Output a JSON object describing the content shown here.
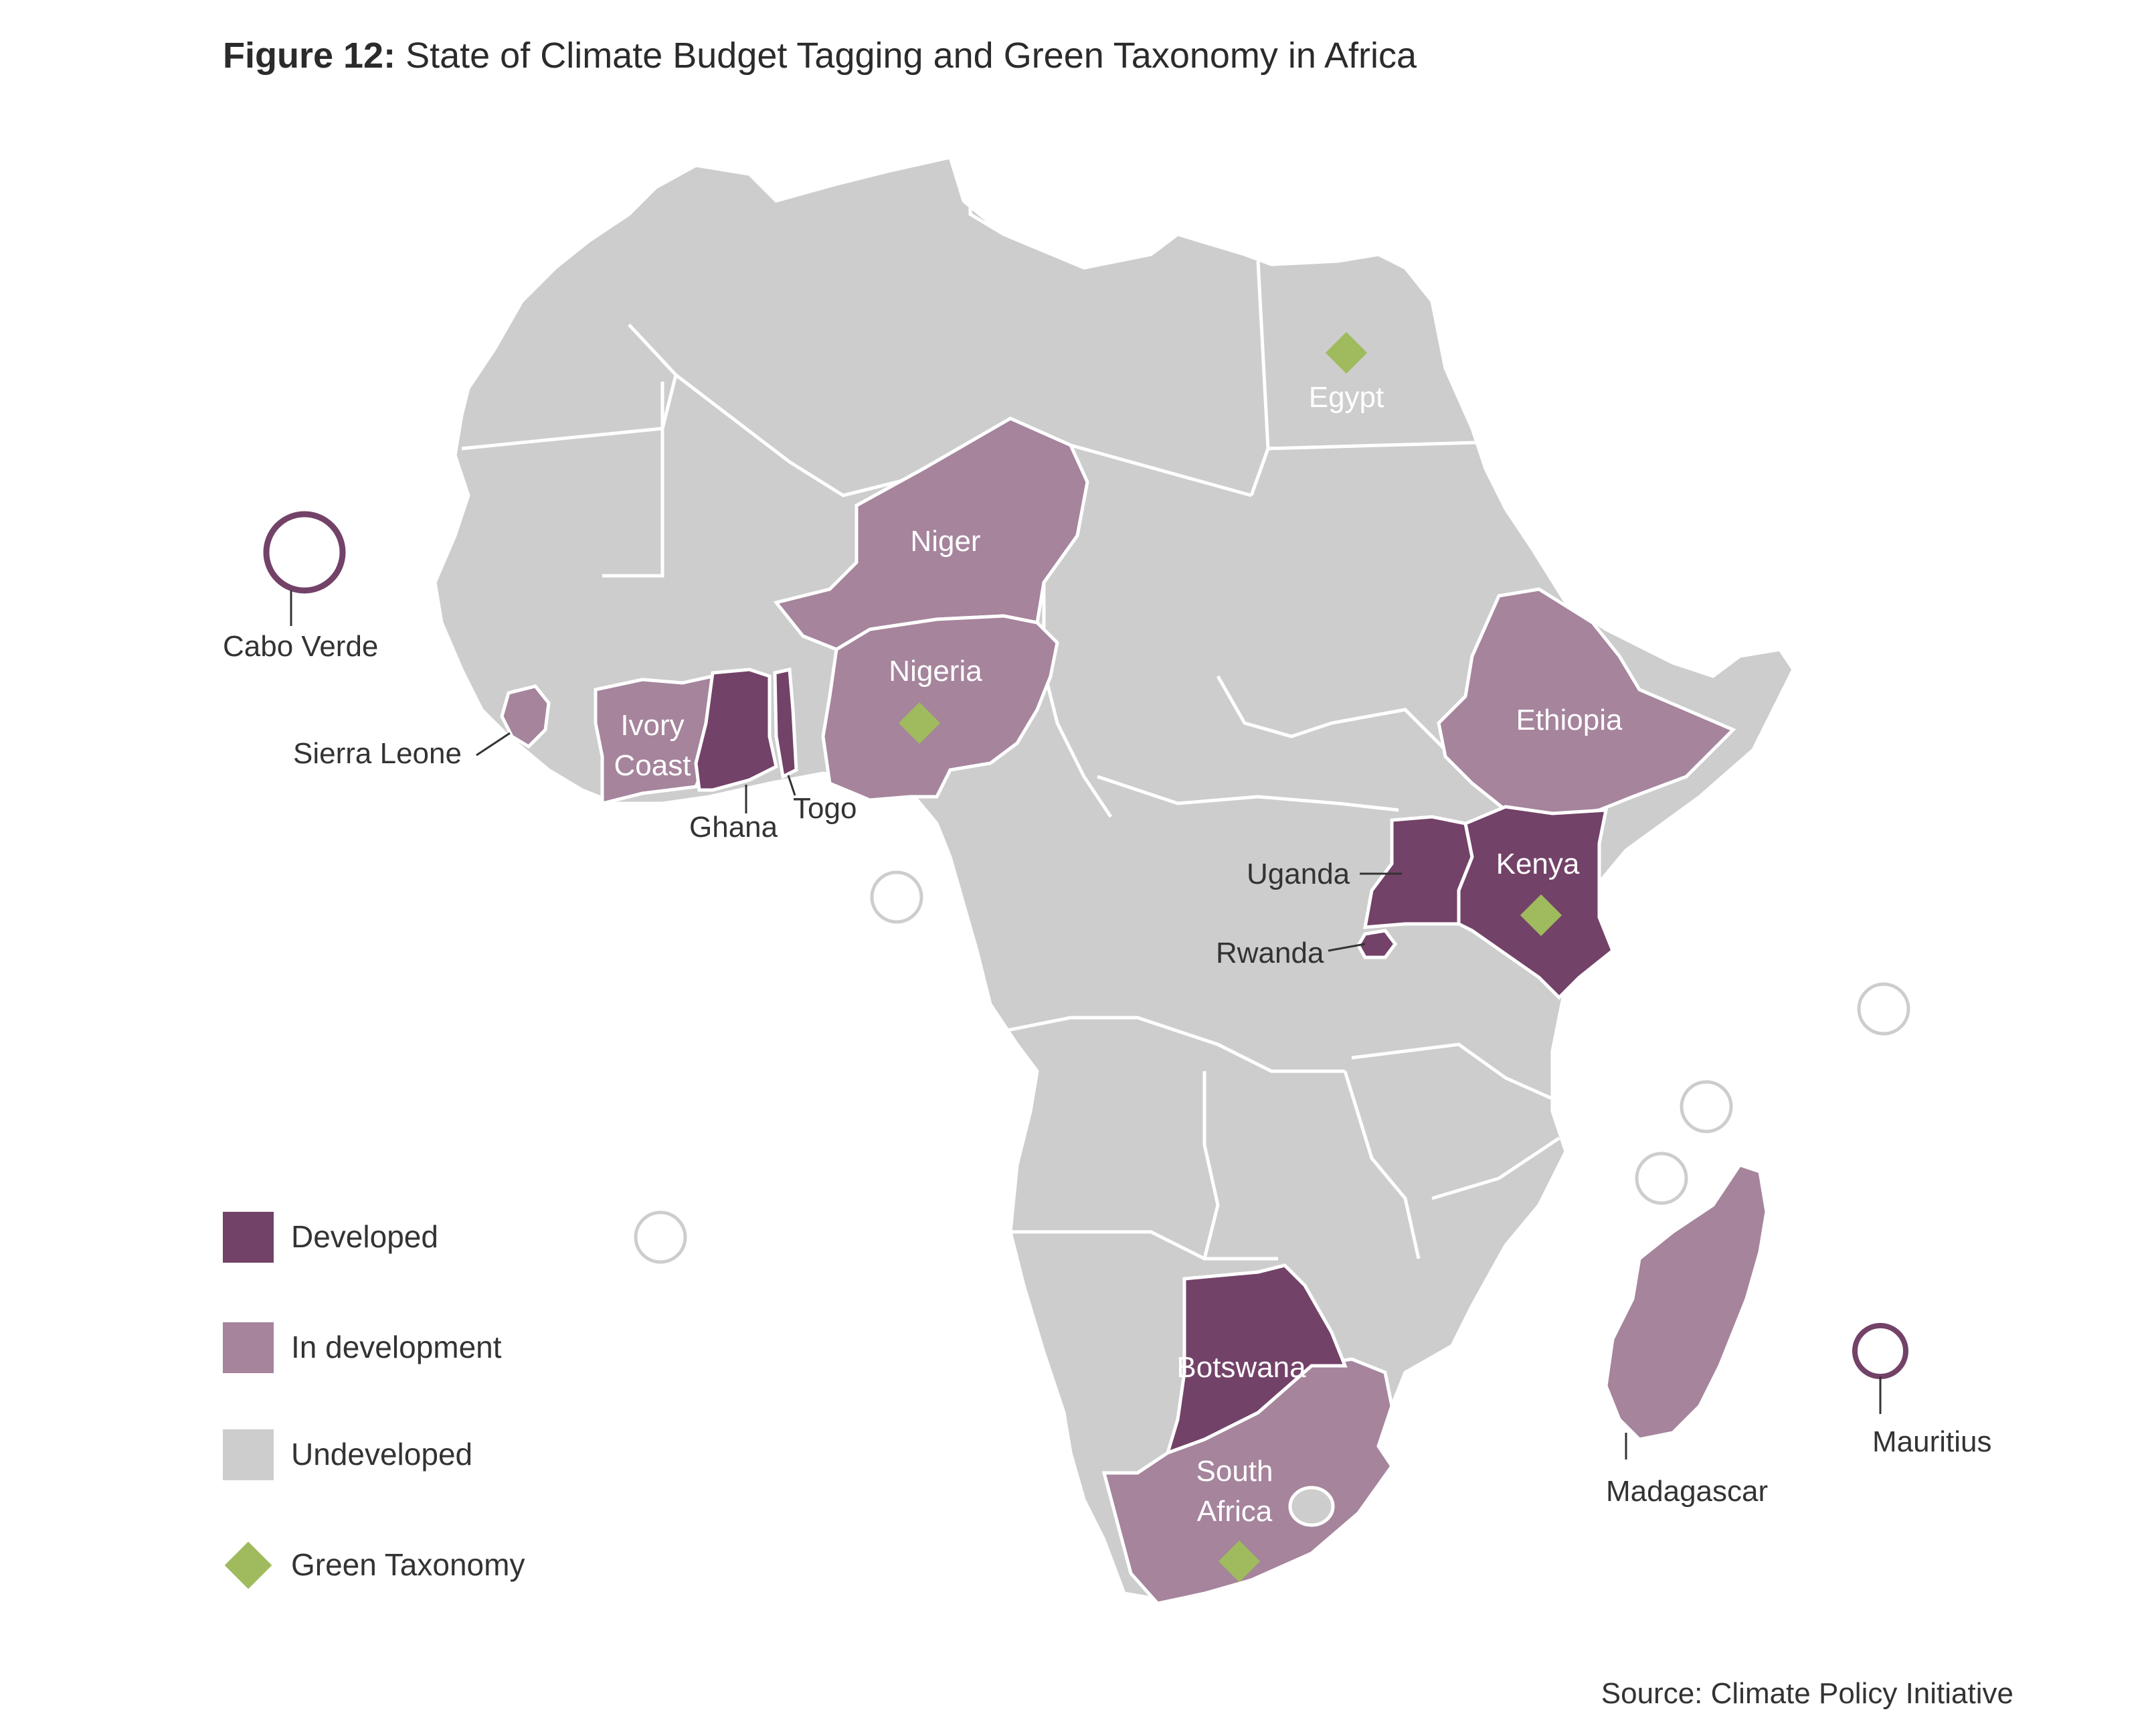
{
  "title": {
    "prefix": "Figure 12:",
    "text": "State of Climate Budget Tagging and Green Taxonomy in Africa"
  },
  "colors": {
    "developed": "#734268",
    "in_development": "#a5849c",
    "undeveloped": "#cdcdcd",
    "green_taxonomy": "#9fbb5d",
    "border": "#ffffff",
    "leader": "#333333"
  },
  "legend": [
    {
      "label": "Developed",
      "color": "#734268",
      "shape": "square"
    },
    {
      "label": "In development",
      "color": "#a5849c",
      "shape": "square"
    },
    {
      "label": "Undeveloped",
      "color": "#cdcdcd",
      "shape": "square"
    },
    {
      "label": "Green Taxonomy",
      "color": "#9fbb5d",
      "shape": "diamond"
    }
  ],
  "countries": [
    {
      "name": "Niger",
      "status": "In development",
      "green_taxonomy": false
    },
    {
      "name": "Nigeria",
      "status": "In development",
      "green_taxonomy": true
    },
    {
      "name": "Ethiopia",
      "status": "In development",
      "green_taxonomy": false
    },
    {
      "name": "Ivory Coast",
      "status": "In development",
      "green_taxonomy": false
    },
    {
      "name": "Sierra Leone",
      "status": "In development",
      "green_taxonomy": false
    },
    {
      "name": "Ghana",
      "status": "Developed",
      "green_taxonomy": false
    },
    {
      "name": "Togo",
      "status": "Developed",
      "green_taxonomy": false
    },
    {
      "name": "Uganda",
      "status": "Developed",
      "green_taxonomy": false
    },
    {
      "name": "Kenya",
      "status": "Developed",
      "green_taxonomy": true
    },
    {
      "name": "Rwanda",
      "status": "Developed",
      "green_taxonomy": false
    },
    {
      "name": "Botswana",
      "status": "Developed",
      "green_taxonomy": false
    },
    {
      "name": "South Africa",
      "status": "In development",
      "green_taxonomy": true
    },
    {
      "name": "Madagascar",
      "status": "In development",
      "green_taxonomy": false
    },
    {
      "name": "Egypt",
      "status": "Undeveloped",
      "green_taxonomy": true
    },
    {
      "name": "Cabo Verde",
      "status": "Developed",
      "green_taxonomy": false
    },
    {
      "name": "Mauritius",
      "status": "Developed",
      "green_taxonomy": false
    }
  ],
  "labels": {
    "egypt": "Egypt",
    "niger": "Niger",
    "nigeria": "Nigeria",
    "ethiopia": "Ethiopia",
    "ivory_1": "Ivory",
    "ivory_2": "Coast",
    "sierra_leone": "Sierra Leone",
    "ghana": "Ghana",
    "togo": "Togo",
    "uganda": "Uganda",
    "kenya": "Kenya",
    "rwanda": "Rwanda",
    "botswana": "Botswana",
    "south_africa_1": "South",
    "south_africa_2": "Africa",
    "madagascar": "Madagascar",
    "cabo_verde": "Cabo Verde",
    "mauritius": "Mauritius"
  },
  "source": "Source: Climate Policy Initiative"
}
